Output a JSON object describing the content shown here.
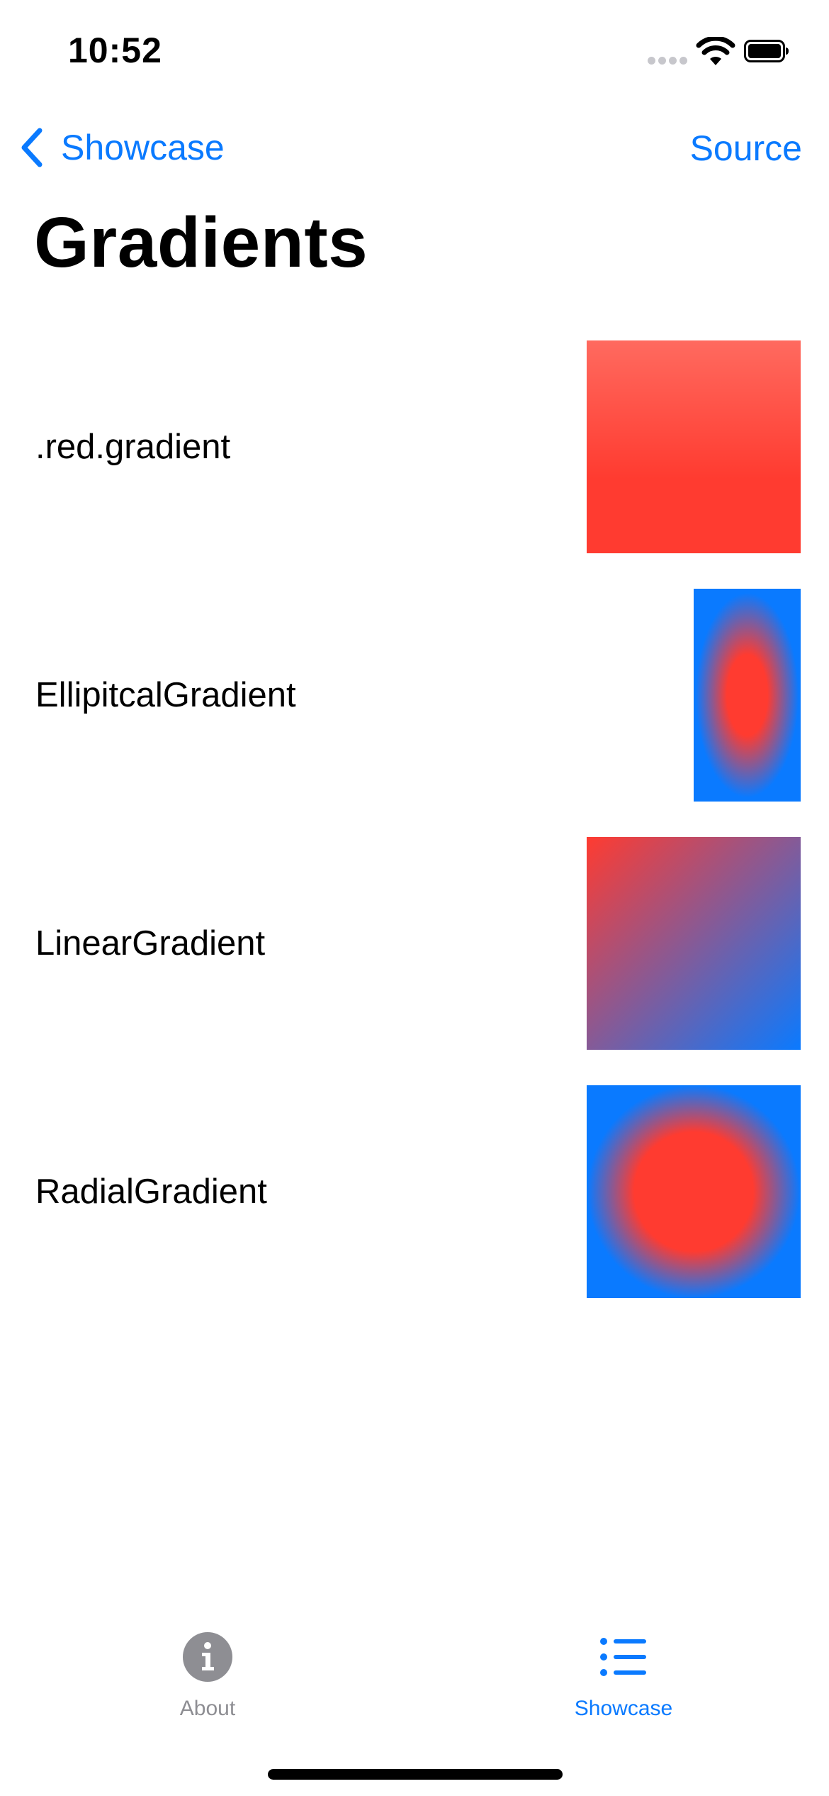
{
  "status_bar": {
    "time": "10:52",
    "icons": [
      "cellular-signal-icon",
      "wifi-icon",
      "battery-icon"
    ]
  },
  "nav": {
    "back_label": "Showcase",
    "back_icon": "chevron-left-icon",
    "right_action": "Source",
    "title": "Gradients"
  },
  "colors": {
    "accent": "#0a7aff",
    "red": "#ff3b30",
    "blue": "#0a7aff",
    "inactive": "#8e8e93"
  },
  "rows": [
    {
      "label": ".red.gradient",
      "swatch": "red-vertical-gradient"
    },
    {
      "label": "EllipitcalGradient",
      "swatch": "elliptical-red-to-blue-gradient"
    },
    {
      "label": "LinearGradient",
      "swatch": "linear-red-to-blue-diagonal-gradient"
    },
    {
      "label": "RadialGradient",
      "swatch": "radial-red-to-blue-gradient"
    }
  ],
  "tab_bar": {
    "items": [
      {
        "label": "About",
        "icon": "info-circle-icon",
        "selected": false
      },
      {
        "label": "Showcase",
        "icon": "list-bullet-icon",
        "selected": true
      }
    ]
  }
}
